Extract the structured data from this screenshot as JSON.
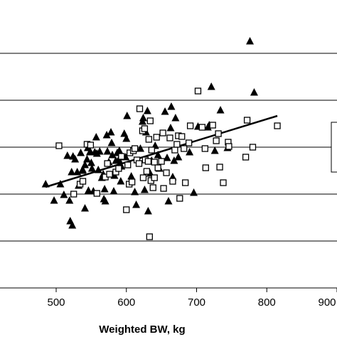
{
  "chart_data": {
    "type": "scatter",
    "xlabel": "Weighted BW, kg",
    "ylabel": "",
    "title": "",
    "xlim": [
      420,
      900
    ],
    "x_ticks": [
      500,
      600,
      700,
      800,
      900
    ],
    "grid": "horizontal",
    "legend": "right (partially cropped, no visible text)",
    "series": [
      {
        "marker": "filled-triangle",
        "color": "#000000",
        "points": [
          [
            485,
            259
          ],
          [
            497,
            282
          ],
          [
            506,
            259
          ],
          [
            511,
            274
          ],
          [
            516,
            219
          ],
          [
            519,
            282
          ],
          [
            520,
            311
          ],
          [
            522,
            242
          ],
          [
            523,
            317
          ],
          [
            524,
            220
          ],
          [
            527,
            224
          ],
          [
            530,
            242
          ],
          [
            532,
            261
          ],
          [
            535,
            215
          ],
          [
            537,
            240
          ],
          [
            538,
            239
          ],
          [
            541,
            293
          ],
          [
            541,
            232
          ],
          [
            544,
            224
          ],
          [
            545,
            208
          ],
          [
            546,
            268
          ],
          [
            548,
            214
          ],
          [
            549,
            214
          ],
          [
            550,
            229
          ],
          [
            551,
            237
          ],
          [
            553,
            269
          ],
          [
            555,
            214
          ],
          [
            557,
            193
          ],
          [
            558,
            216
          ],
          [
            560,
            239
          ],
          [
            562,
            213
          ],
          [
            565,
            250
          ],
          [
            567,
            245
          ],
          [
            568,
            280
          ],
          [
            569,
            266
          ],
          [
            570,
            283
          ],
          [
            572,
            190
          ],
          [
            573,
            213
          ],
          [
            575,
            228
          ],
          [
            578,
            186
          ],
          [
            579,
            201
          ],
          [
            580,
            218
          ],
          [
            582,
            269
          ],
          [
            583,
            247
          ],
          [
            585,
            226
          ],
          [
            587,
            215
          ],
          [
            590,
            212
          ],
          [
            590,
            226
          ],
          [
            591,
            221
          ],
          [
            592,
            255
          ],
          [
            593,
            234
          ],
          [
            597,
            188
          ],
          [
            599,
            221
          ],
          [
            600,
            195
          ],
          [
            601,
            163
          ],
          [
            607,
            248
          ],
          [
            609,
            212
          ],
          [
            612,
            270
          ],
          [
            614,
            288
          ],
          [
            620,
            209
          ],
          [
            623,
            171
          ],
          [
            624,
            166
          ],
          [
            626,
            267
          ],
          [
            628,
            186
          ],
          [
            630,
            156
          ],
          [
            631,
            297
          ],
          [
            634,
            244
          ],
          [
            636,
            226
          ],
          [
            641,
            205
          ],
          [
            645,
            218
          ],
          [
            647,
            237
          ],
          [
            655,
            157
          ],
          [
            658,
            222
          ],
          [
            660,
            283
          ],
          [
            663,
            180
          ],
          [
            664,
            150
          ],
          [
            666,
            249
          ],
          [
            668,
            226
          ],
          [
            670,
            166
          ],
          [
            674,
            221
          ],
          [
            690,
            214
          ],
          [
            696,
            271
          ],
          [
            702,
            178
          ],
          [
            716,
            179
          ],
          [
            718,
            176
          ],
          [
            721,
            122
          ],
          [
            726,
            212
          ],
          [
            734,
            155
          ],
          [
            744,
            208
          ],
          [
            776,
            58
          ],
          [
            782,
            130
          ]
        ]
      },
      {
        "marker": "open-square",
        "color": "#000000",
        "points": [
          [
            504,
            205
          ],
          [
            525,
            273
          ],
          [
            534,
            259
          ],
          [
            538,
            255
          ],
          [
            544,
            203
          ],
          [
            549,
            204
          ],
          [
            558,
            272
          ],
          [
            570,
            249
          ],
          [
            573,
            230
          ],
          [
            576,
            245
          ],
          [
            585,
            242
          ],
          [
            589,
            237
          ],
          [
            593,
            220
          ],
          [
            600,
            295
          ],
          [
            602,
            232
          ],
          [
            604,
            259
          ],
          [
            605,
            215
          ],
          [
            608,
            256
          ],
          [
            610,
            212
          ],
          [
            612,
            209
          ],
          [
            615,
            225
          ],
          [
            618,
            230
          ],
          [
            619,
            153
          ],
          [
            623,
            184
          ],
          [
            624,
            250
          ],
          [
            626,
            181
          ],
          [
            627,
            225
          ],
          [
            629,
            241
          ],
          [
            631,
            227
          ],
          [
            632,
            196
          ],
          [
            633,
            333
          ],
          [
            634,
            170
          ],
          [
            635,
            254
          ],
          [
            636,
            211
          ],
          [
            638,
            264
          ],
          [
            640,
            228
          ],
          [
            640,
            250
          ],
          [
            643,
            193
          ],
          [
            645,
            236
          ],
          [
            650,
            227
          ],
          [
            652,
            187
          ],
          [
            653,
            265
          ],
          [
            657,
            243
          ],
          [
            662,
            194
          ],
          [
            666,
            255
          ],
          [
            669,
            211
          ],
          [
            672,
            203
          ],
          [
            674,
            191
          ],
          [
            676,
            279
          ],
          [
            679,
            192
          ],
          [
            682,
            209
          ],
          [
            684,
            257
          ],
          [
            689,
            201
          ],
          [
            691,
            177
          ],
          [
            702,
            128
          ],
          [
            708,
            179
          ],
          [
            712,
            209
          ],
          [
            713,
            236
          ],
          [
            723,
            176
          ],
          [
            728,
            198
          ],
          [
            731,
            188
          ],
          [
            733,
            235
          ],
          [
            738,
            257
          ],
          [
            745,
            200
          ],
          [
            746,
            206
          ],
          [
            770,
            221
          ],
          [
            772,
            169
          ],
          [
            780,
            207
          ],
          [
            815,
            177
          ]
        ]
      }
    ],
    "trendline": {
      "x": [
        485,
        815
      ],
      "y_pixel_note": "linear fit"
    }
  }
}
